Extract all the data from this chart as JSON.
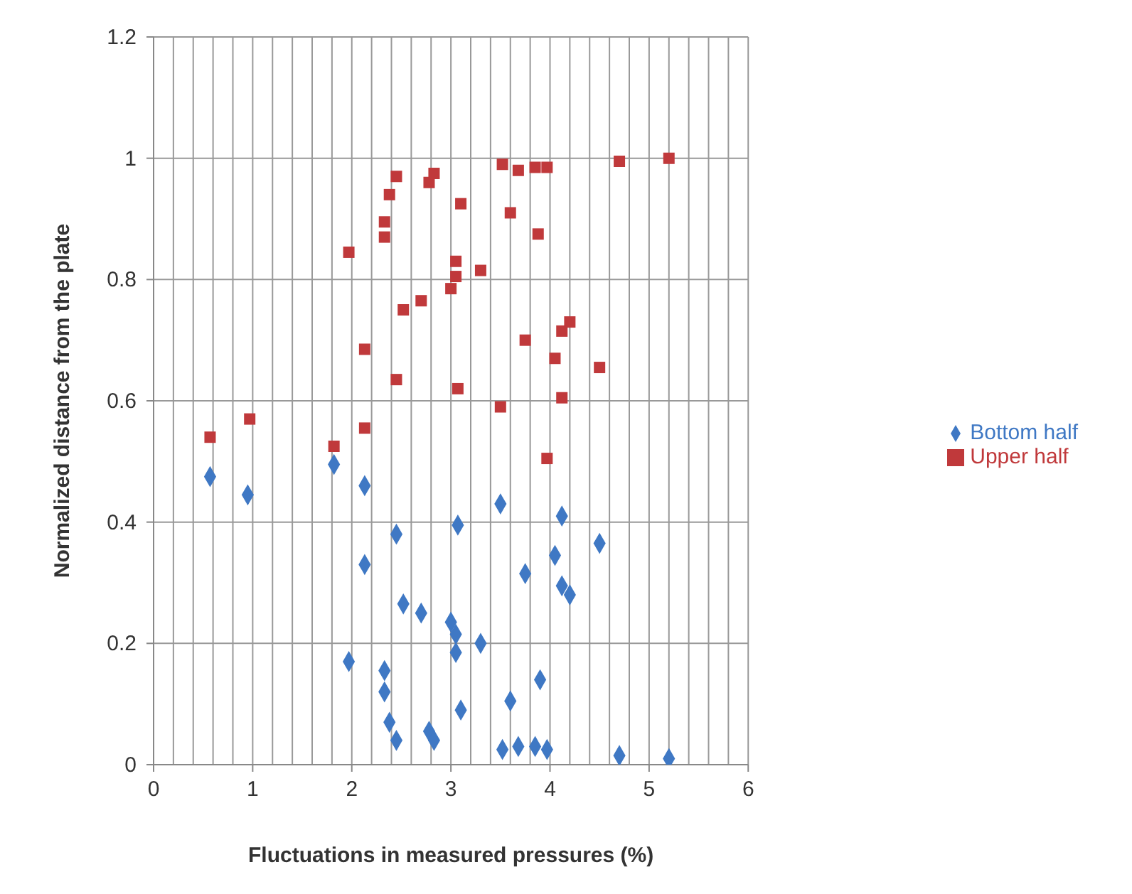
{
  "chart_data": {
    "type": "scatter",
    "xlabel": "Fluctuations in measured pressures (%)",
    "ylabel": "Normalized distance from the plate",
    "xlim": [
      0,
      6
    ],
    "ylim": [
      0,
      1.2
    ],
    "xticks": [
      0,
      {
        "value": 0.2,
        "label": null
      },
      {
        "value": 0.4,
        "label": null
      },
      {
        "value": 0.6,
        "label": null
      },
      {
        "value": 0.8,
        "label": null
      },
      1,
      {
        "value": 1.2,
        "label": null
      },
      {
        "value": 1.4,
        "label": null
      },
      {
        "value": 1.6,
        "label": null
      },
      {
        "value": 1.8,
        "label": null
      },
      2,
      {
        "value": 2.2,
        "label": null
      },
      {
        "value": 2.4,
        "label": null
      },
      {
        "value": 2.6,
        "label": null
      },
      {
        "value": 2.8,
        "label": null
      },
      3,
      {
        "value": 3.2,
        "label": null
      },
      {
        "value": 3.4,
        "label": null
      },
      {
        "value": 3.6,
        "label": null
      },
      {
        "value": 3.8,
        "label": null
      },
      4,
      {
        "value": 4.2,
        "label": null
      },
      {
        "value": 4.4,
        "label": null
      },
      {
        "value": 4.6,
        "label": null
      },
      {
        "value": 4.8,
        "label": null
      },
      5,
      {
        "value": 5.2,
        "label": null
      },
      {
        "value": 5.4,
        "label": null
      },
      {
        "value": 5.6,
        "label": null
      },
      {
        "value": 5.8,
        "label": null
      },
      6
    ],
    "yticks": [
      0,
      0.2,
      0.4,
      0.6,
      0.8,
      1,
      1.2
    ],
    "grid": true,
    "legend": "right",
    "series": [
      {
        "name": "Bottom half",
        "color": "#3f78c4",
        "marker": "diamond",
        "x": [
          0.57,
          0.95,
          1.82,
          1.97,
          2.13,
          2.13,
          2.33,
          2.33,
          2.38,
          2.45,
          2.45,
          2.52,
          2.7,
          2.78,
          2.83,
          3.0,
          3.05,
          3.05,
          3.07,
          3.1,
          3.3,
          3.5,
          3.52,
          3.6,
          3.68,
          3.75,
          3.85,
          3.9,
          3.97,
          4.05,
          4.12,
          4.12,
          4.2,
          4.5,
          4.7,
          5.2
        ],
        "values": [
          0.475,
          0.445,
          0.495,
          0.17,
          0.46,
          0.33,
          0.155,
          0.12,
          0.07,
          0.04,
          0.38,
          0.265,
          0.25,
          0.055,
          0.04,
          0.235,
          0.215,
          0.185,
          0.395,
          0.09,
          0.2,
          0.43,
          0.025,
          0.105,
          0.03,
          0.315,
          0.03,
          0.14,
          0.025,
          0.345,
          0.41,
          0.295,
          0.28,
          0.365,
          0.015,
          0.01
        ]
      },
      {
        "name": "Upper half",
        "color": "#c0393b",
        "marker": "square",
        "x": [
          0.57,
          0.97,
          1.82,
          1.97,
          2.13,
          2.13,
          2.33,
          2.33,
          2.38,
          2.45,
          2.45,
          2.52,
          2.7,
          2.78,
          2.83,
          3.0,
          3.05,
          3.05,
          3.07,
          3.1,
          3.3,
          3.5,
          3.52,
          3.6,
          3.68,
          3.75,
          3.85,
          3.88,
          3.97,
          3.97,
          4.05,
          4.12,
          4.12,
          4.2,
          4.5,
          4.7,
          5.2
        ],
        "values": [
          0.54,
          0.57,
          0.525,
          0.845,
          0.685,
          0.555,
          0.895,
          0.87,
          0.94,
          0.97,
          0.635,
          0.75,
          0.765,
          0.96,
          0.975,
          0.785,
          0.83,
          0.805,
          0.62,
          0.925,
          0.815,
          0.59,
          0.99,
          0.91,
          0.98,
          0.7,
          0.985,
          0.875,
          0.985,
          0.505,
          0.67,
          0.715,
          0.605,
          0.73,
          0.655,
          0.995,
          1.0
        ]
      }
    ]
  }
}
